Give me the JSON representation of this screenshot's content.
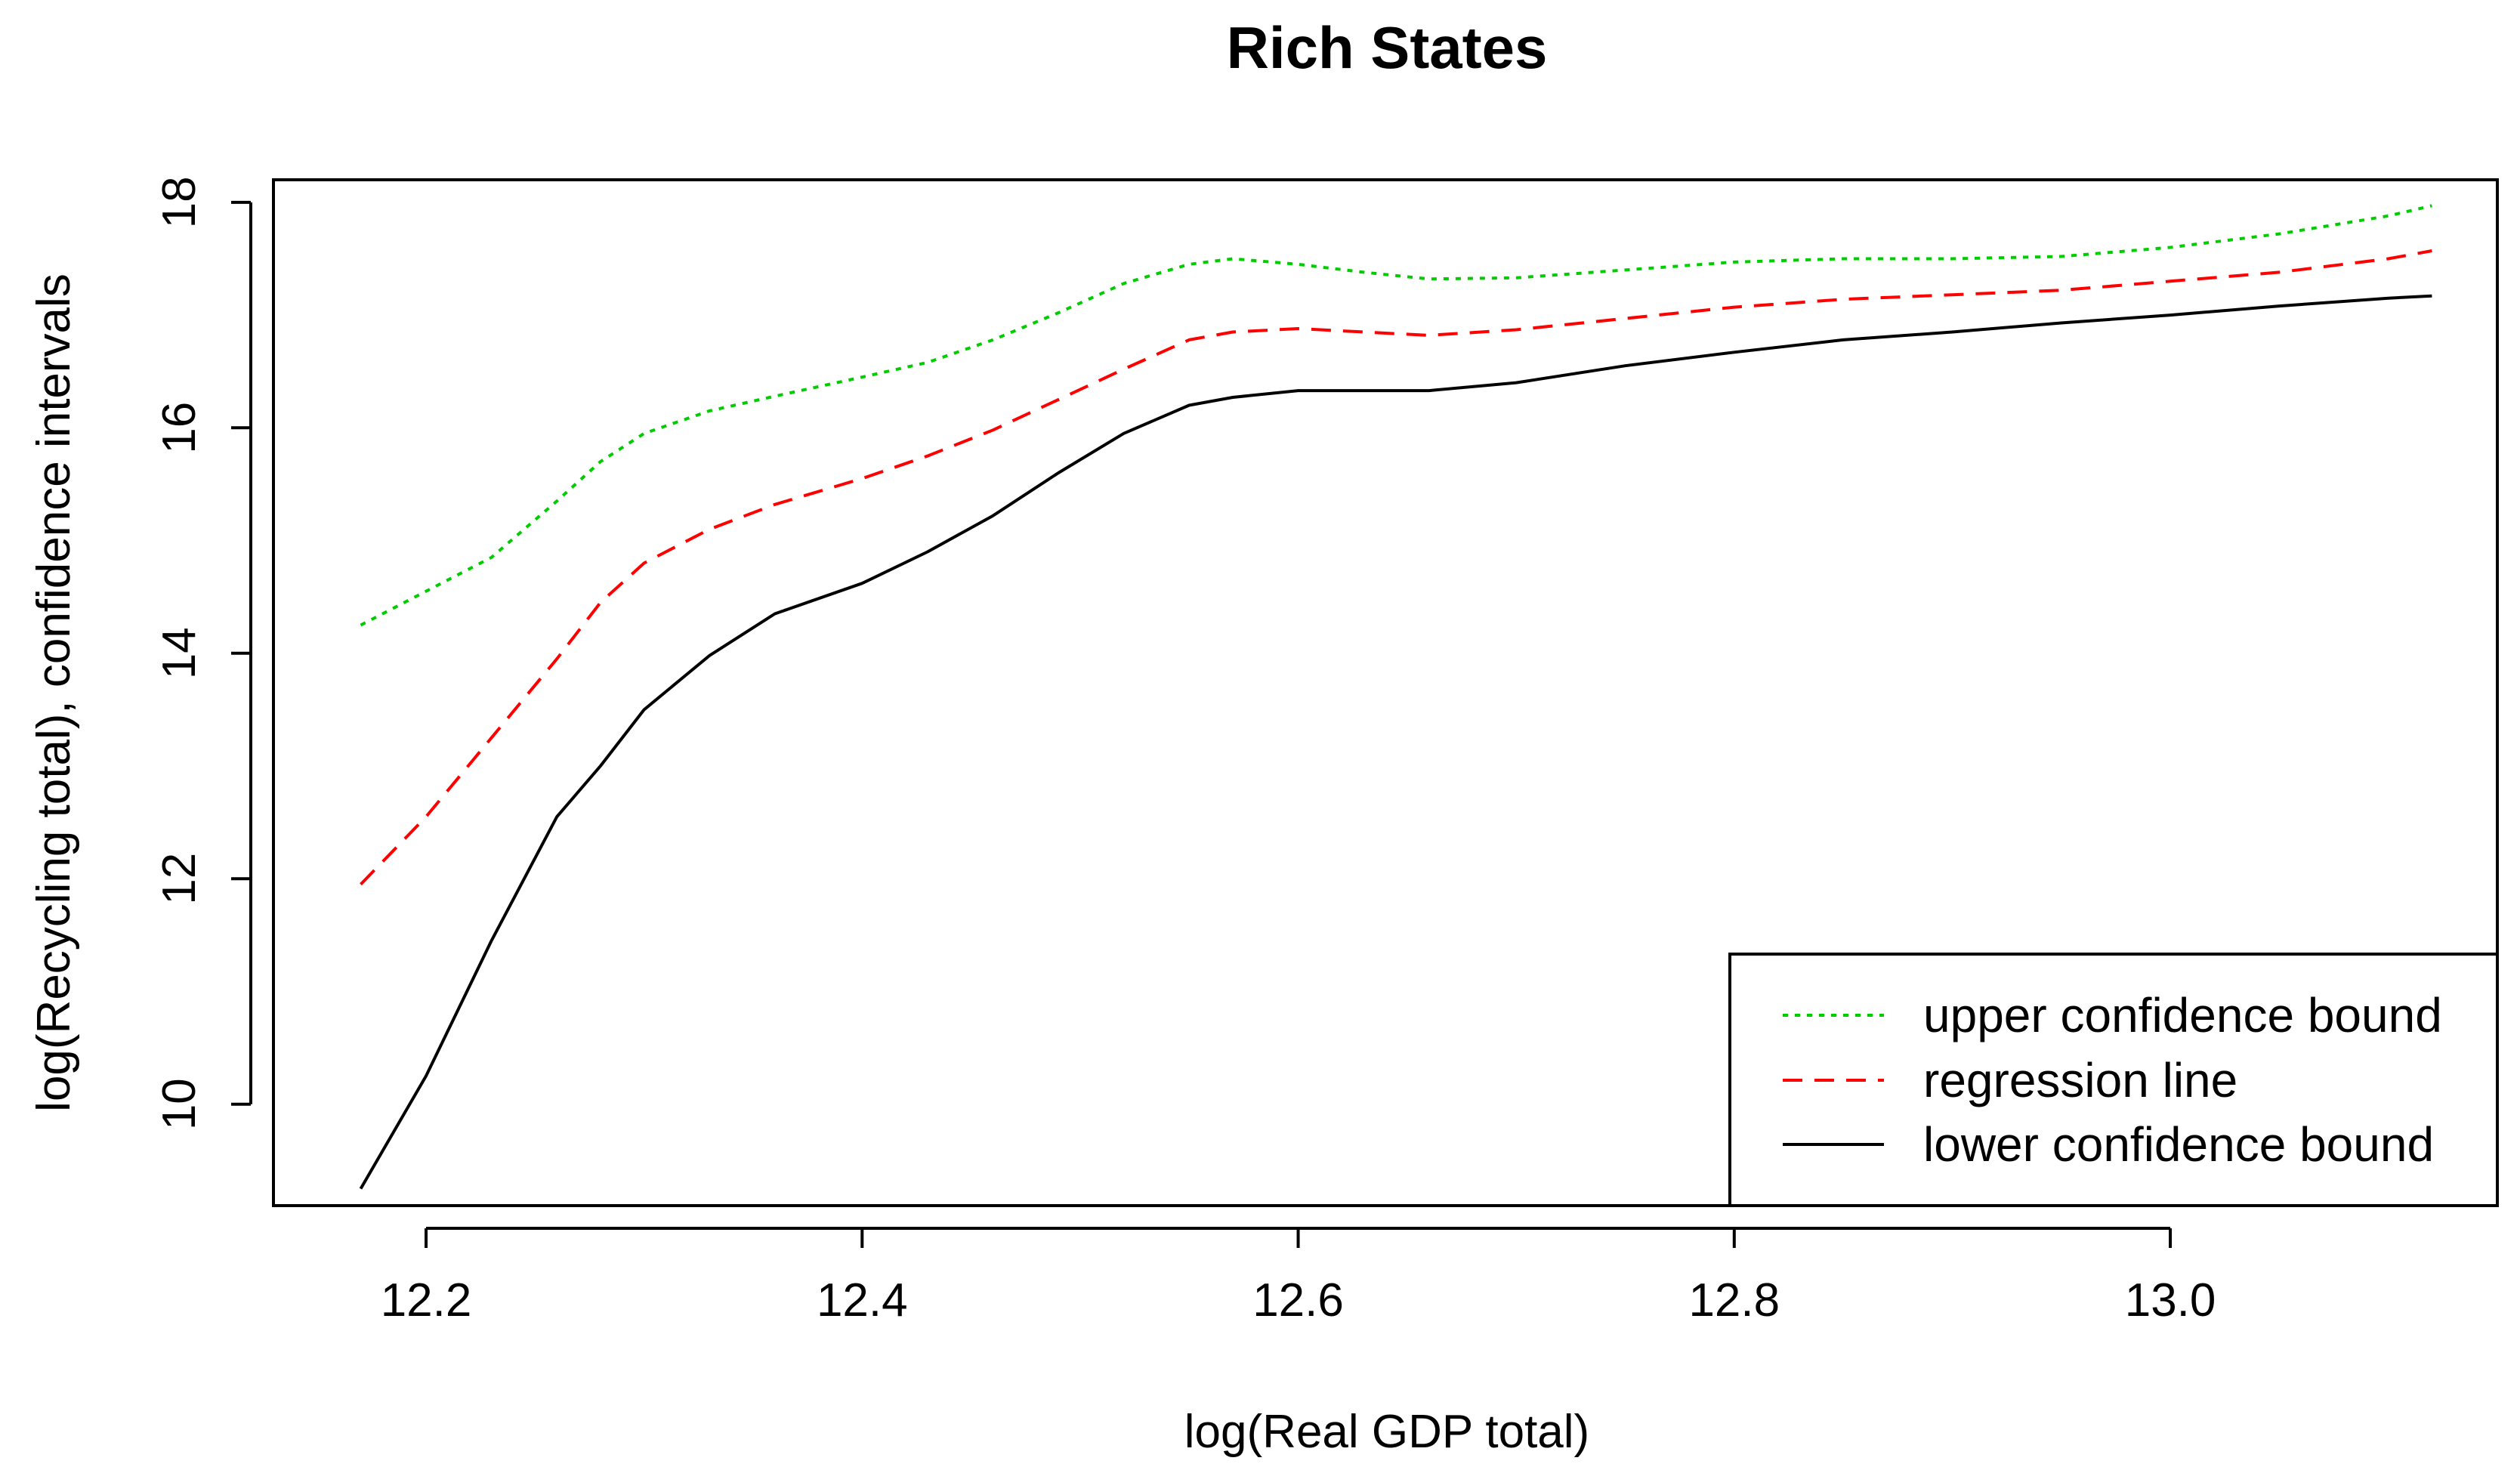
{
  "chart_data": {
    "type": "line",
    "title": "Rich States",
    "xlabel": "log(Real GDP total)",
    "ylabel": "log(Recycling total), confidence intervals",
    "xlim": [
      12.13,
      13.15
    ],
    "ylim": [
      9.1,
      18.2
    ],
    "x_ticks": [
      12.2,
      12.4,
      12.6,
      12.8,
      13.0
    ],
    "x_tick_labels": [
      "12.2",
      "12.4",
      "12.6",
      "12.8",
      "13.0"
    ],
    "y_ticks": [
      10,
      12,
      14,
      16,
      18
    ],
    "y_tick_labels": [
      "10",
      "12",
      "14",
      "16",
      "18"
    ],
    "grid": false,
    "legend_position": "bottom-right",
    "series": [
      {
        "name": "upper confidence bound",
        "color": "#00cc00",
        "style": "dotted",
        "x": [
          12.17,
          12.2,
          12.23,
          12.26,
          12.28,
          12.3,
          12.33,
          12.36,
          12.4,
          12.43,
          12.46,
          12.49,
          12.52,
          12.55,
          12.57,
          12.6,
          12.63,
          12.66,
          12.7,
          12.75,
          12.8,
          12.85,
          12.9,
          12.95,
          13.0,
          13.05,
          13.1,
          13.12
        ],
        "values": [
          14.25,
          14.55,
          14.85,
          15.35,
          15.7,
          15.95,
          16.15,
          16.28,
          16.45,
          16.58,
          16.78,
          17.02,
          17.28,
          17.45,
          17.5,
          17.45,
          17.38,
          17.32,
          17.33,
          17.4,
          17.47,
          17.5,
          17.5,
          17.52,
          17.6,
          17.72,
          17.88,
          17.97
        ]
      },
      {
        "name": "regression line",
        "color": "#ff0000",
        "style": "dashed",
        "x": [
          12.17,
          12.2,
          12.23,
          12.26,
          12.28,
          12.3,
          12.33,
          12.36,
          12.4,
          12.43,
          12.46,
          12.49,
          12.52,
          12.55,
          12.57,
          12.6,
          12.63,
          12.66,
          12.7,
          12.75,
          12.8,
          12.85,
          12.9,
          12.95,
          13.0,
          13.05,
          13.1,
          13.12
        ],
        "values": [
          11.95,
          12.55,
          13.25,
          13.95,
          14.45,
          14.8,
          15.1,
          15.32,
          15.55,
          15.75,
          15.98,
          16.25,
          16.52,
          16.78,
          16.85,
          16.88,
          16.85,
          16.82,
          16.87,
          16.97,
          17.07,
          17.14,
          17.18,
          17.22,
          17.3,
          17.38,
          17.5,
          17.57
        ]
      },
      {
        "name": "lower confidence bound",
        "color": "#000000",
        "style": "solid",
        "x": [
          12.17,
          12.2,
          12.23,
          12.26,
          12.28,
          12.3,
          12.33,
          12.36,
          12.4,
          12.43,
          12.46,
          12.49,
          12.52,
          12.55,
          12.57,
          12.6,
          12.63,
          12.66,
          12.7,
          12.75,
          12.8,
          12.85,
          12.9,
          12.95,
          13.0,
          13.05,
          13.1,
          13.12
        ],
        "values": [
          9.25,
          10.25,
          11.45,
          12.55,
          13.0,
          13.5,
          13.98,
          14.35,
          14.62,
          14.9,
          15.22,
          15.6,
          15.95,
          16.2,
          16.27,
          16.33,
          16.33,
          16.33,
          16.4,
          16.55,
          16.67,
          16.78,
          16.85,
          16.93,
          17.0,
          17.08,
          17.15,
          17.17
        ]
      }
    ]
  }
}
